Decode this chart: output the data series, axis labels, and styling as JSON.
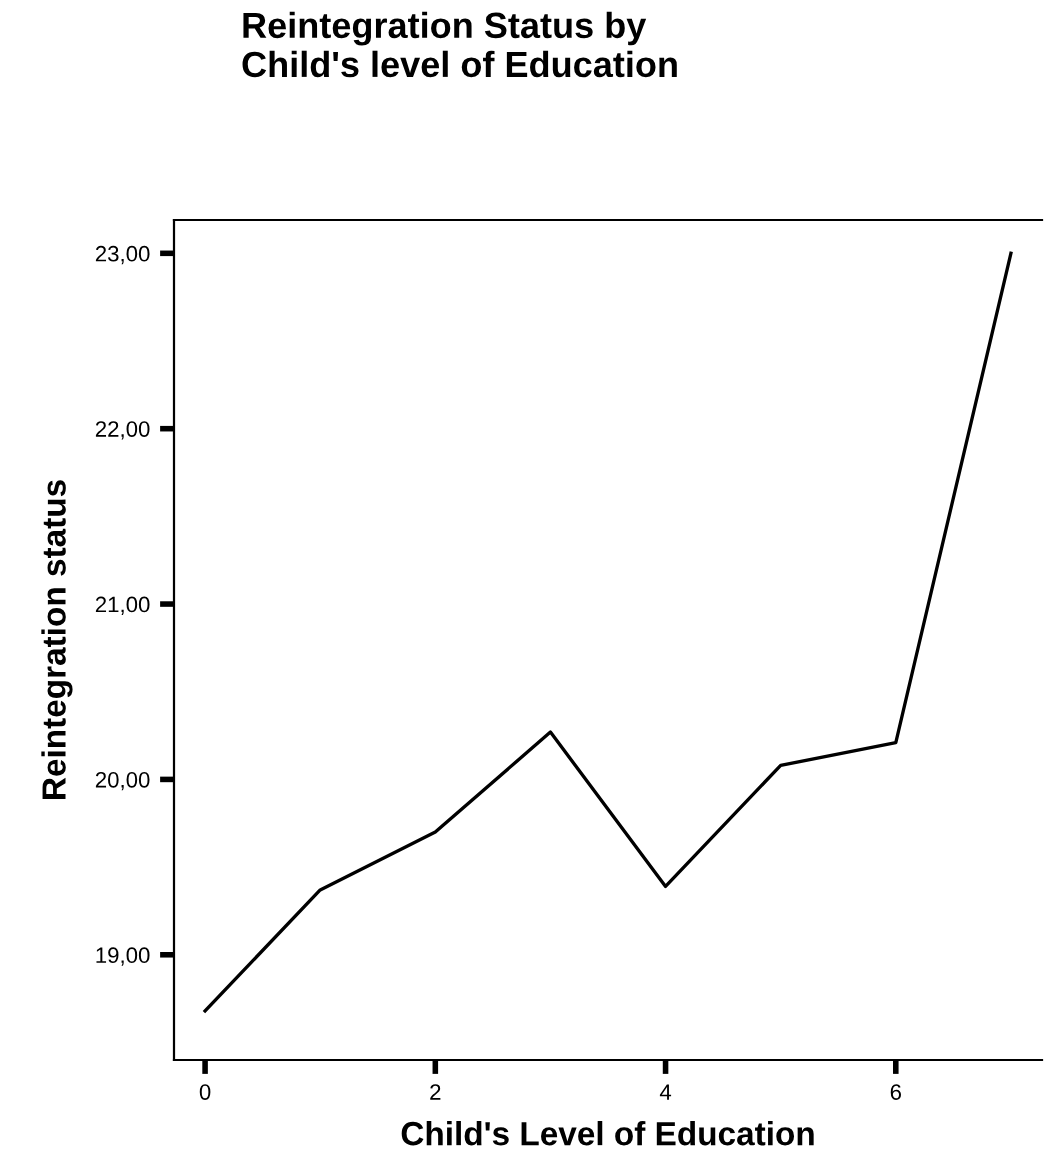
{
  "chart_data": {
    "type": "line",
    "title": "Reintegration Status by\nChild's level of Education",
    "xlabel": "Child's Level of Education",
    "ylabel": "Reintegration status",
    "x": [
      0,
      1,
      2,
      3,
      4,
      5,
      6,
      7
    ],
    "series": [
      {
        "color": "#000000",
        "values": [
          18.68,
          19.37,
          19.7,
          20.27,
          19.39,
          20.08,
          20.21,
          23.0
        ]
      }
    ],
    "xlim": [
      -0.27,
      7.27
    ],
    "xticks": [
      0,
      2,
      4,
      6
    ],
    "ylim": [
      18.4,
      23.19
    ],
    "yticks": [
      {
        "value": 19,
        "label": "19,00"
      },
      {
        "value": 20,
        "label": "20,00"
      },
      {
        "value": 21,
        "label": "21,00"
      },
      {
        "value": 22,
        "label": "22,00"
      },
      {
        "value": 23,
        "label": "23,00"
      }
    ],
    "grid": false,
    "legend": false,
    "marker": "none",
    "line_style": "solid"
  }
}
